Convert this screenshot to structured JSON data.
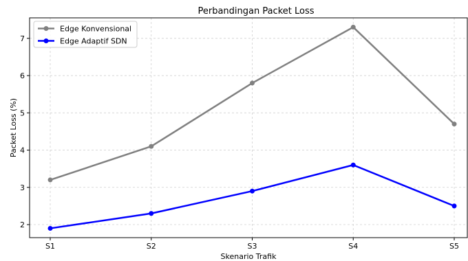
{
  "chart_data": {
    "type": "line",
    "title": "Perbandingan Packet Loss",
    "xlabel": "Skenario Trafik",
    "ylabel": "Packet Loss (%)",
    "categories": [
      "S1",
      "S2",
      "S3",
      "S4",
      "S5"
    ],
    "ylim": [
      1.65,
      7.55
    ],
    "yticks": [
      2,
      3,
      4,
      5,
      6,
      7
    ],
    "ytick_labels": [
      "2",
      "3",
      "4",
      "5",
      "6",
      "7"
    ],
    "grid": true,
    "legend_position": "top-left",
    "series": [
      {
        "name": "Edge Konvensional",
        "values": [
          3.2,
          4.1,
          5.8,
          7.3,
          4.7
        ],
        "color": "#808080"
      },
      {
        "name": "Edge Adaptif SDN",
        "values": [
          1.9,
          2.3,
          2.9,
          3.6,
          2.5
        ],
        "color": "#0000ff"
      }
    ]
  }
}
